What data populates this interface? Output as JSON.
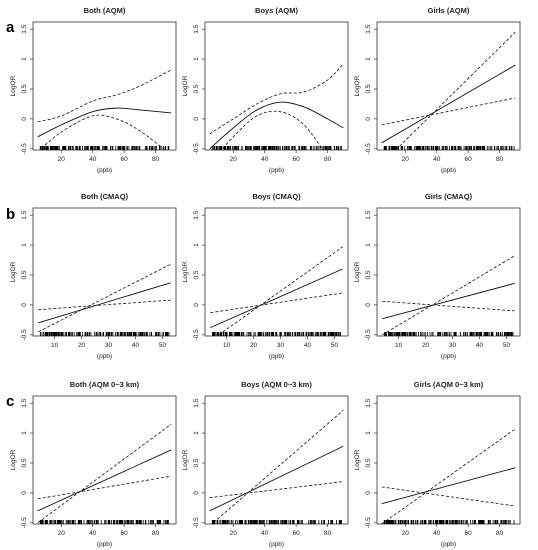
{
  "chart_data": [
    {
      "type": "line",
      "panel_letter": "a",
      "title": "Both (AQM)",
      "xlabel": "(ppb)",
      "ylabel": "LogOR",
      "xlim": [
        2,
        93
      ],
      "ylim": [
        -0.52,
        1.62
      ],
      "xticks": [
        20,
        40,
        60,
        80
      ],
      "yticks": [
        -0.5,
        0,
        0.5,
        1.0,
        1.5
      ],
      "series": [
        {
          "style": "solid",
          "x": [
            5,
            20,
            40,
            55,
            70,
            90
          ],
          "y": [
            -0.3,
            -0.1,
            0.12,
            0.18,
            0.15,
            0.1
          ]
        },
        {
          "style": "dashed",
          "x": [
            5,
            20,
            40,
            55,
            70,
            90
          ],
          "y": [
            -0.05,
            0.05,
            0.3,
            0.4,
            0.55,
            0.82
          ]
        },
        {
          "style": "dashed",
          "x": [
            5,
            20,
            40,
            55,
            70,
            90
          ],
          "y": [
            -0.55,
            -0.22,
            0.05,
            0.0,
            -0.2,
            -0.6
          ]
        }
      ]
    },
    {
      "type": "line",
      "title": "Boys (AQM)",
      "xlabel": "(ppb)",
      "ylabel": "LogOR",
      "xlim": [
        2,
        93
      ],
      "ylim": [
        -0.52,
        1.62
      ],
      "xticks": [
        20,
        40,
        60,
        80
      ],
      "yticks": [
        -0.5,
        0,
        0.5,
        1.0,
        1.5
      ],
      "series": [
        {
          "style": "solid",
          "x": [
            5,
            20,
            35,
            50,
            65,
            80,
            90
          ],
          "y": [
            -0.5,
            -0.15,
            0.15,
            0.28,
            0.2,
            0.0,
            -0.15
          ]
        },
        {
          "style": "dashed",
          "x": [
            5,
            20,
            35,
            50,
            65,
            80,
            90
          ],
          "y": [
            -0.25,
            0.0,
            0.25,
            0.42,
            0.45,
            0.65,
            0.92
          ]
        },
        {
          "style": "dashed",
          "x": [
            5,
            20,
            35,
            50,
            65,
            80,
            90
          ],
          "y": [
            -0.75,
            -0.3,
            0.05,
            0.12,
            -0.1,
            -0.65,
            -1.2
          ]
        }
      ]
    },
    {
      "type": "line",
      "title": "Girls (AQM)",
      "xlabel": "(ppb)",
      "ylabel": "LogOR",
      "xlim": [
        2,
        93
      ],
      "ylim": [
        -0.52,
        1.62
      ],
      "xticks": [
        20,
        40,
        60,
        80
      ],
      "yticks": [
        -0.5,
        0,
        0.5,
        1.0,
        1.5
      ],
      "series": [
        {
          "style": "solid",
          "x": [
            5,
            90
          ],
          "y": [
            -0.4,
            0.9
          ]
        },
        {
          "style": "dashed",
          "x": [
            5,
            90
          ],
          "y": [
            -0.75,
            1.45
          ]
        },
        {
          "style": "dashed",
          "x": [
            5,
            90
          ],
          "y": [
            -0.1,
            0.35
          ]
        }
      ]
    },
    {
      "type": "line",
      "panel_letter": "b",
      "title": "Both (CMAQ)",
      "xlabel": "(ppb)",
      "ylabel": "LogOR",
      "xlim": [
        2,
        55
      ],
      "ylim": [
        -0.52,
        1.62
      ],
      "xticks": [
        10,
        20,
        30,
        40,
        50
      ],
      "yticks": [
        -0.5,
        0,
        0.5,
        1.0,
        1.5
      ],
      "series": [
        {
          "style": "solid",
          "x": [
            4,
            53
          ],
          "y": [
            -0.3,
            0.37
          ]
        },
        {
          "style": "dashed",
          "x": [
            4,
            53
          ],
          "y": [
            -0.45,
            0.68
          ]
        },
        {
          "style": "dashed",
          "x": [
            4,
            53
          ],
          "y": [
            -0.08,
            0.08
          ]
        }
      ]
    },
    {
      "type": "line",
      "title": "Boys (CMAQ)",
      "xlabel": "(ppb)",
      "ylabel": "LogOR",
      "xlim": [
        2,
        55
      ],
      "ylim": [
        -0.52,
        1.62
      ],
      "xticks": [
        10,
        20,
        30,
        40,
        50
      ],
      "yticks": [
        -0.5,
        0,
        0.5,
        1.0,
        1.5
      ],
      "series": [
        {
          "style": "solid",
          "x": [
            4,
            53
          ],
          "y": [
            -0.38,
            0.6
          ]
        },
        {
          "style": "dashed",
          "x": [
            4,
            53
          ],
          "y": [
            -0.6,
            0.97
          ]
        },
        {
          "style": "dashed",
          "x": [
            4,
            53
          ],
          "y": [
            -0.13,
            0.2
          ]
        }
      ]
    },
    {
      "type": "line",
      "title": "Girls (CMAQ)",
      "xlabel": "(ppb)",
      "ylabel": "LogOR",
      "xlim": [
        2,
        55
      ],
      "ylim": [
        -0.52,
        1.62
      ],
      "xticks": [
        10,
        20,
        30,
        40,
        50
      ],
      "yticks": [
        -0.5,
        0,
        0.5,
        1.0,
        1.5
      ],
      "series": [
        {
          "style": "solid",
          "x": [
            4,
            53
          ],
          "y": [
            -0.23,
            0.36
          ]
        },
        {
          "style": "dashed",
          "x": [
            4,
            53
          ],
          "y": [
            -0.5,
            0.82
          ]
        },
        {
          "style": "dashed",
          "x": [
            4,
            53
          ],
          "y": [
            0.06,
            -0.1
          ]
        }
      ]
    },
    {
      "type": "line",
      "panel_letter": "c",
      "title": "Both (AQM 0~3 km)",
      "xlabel": "(ppb)",
      "ylabel": "LogOR",
      "xlim": [
        2,
        93
      ],
      "ylim": [
        -0.52,
        1.62
      ],
      "xticks": [
        20,
        40,
        60,
        80
      ],
      "yticks": [
        -0.5,
        0,
        0.5,
        1.0,
        1.5
      ],
      "series": [
        {
          "style": "solid",
          "x": [
            5,
            90
          ],
          "y": [
            -0.3,
            0.72
          ]
        },
        {
          "style": "dashed",
          "x": [
            5,
            90
          ],
          "y": [
            -0.5,
            1.15
          ]
        },
        {
          "style": "dashed",
          "x": [
            5,
            90
          ],
          "y": [
            -0.1,
            0.28
          ]
        }
      ]
    },
    {
      "type": "line",
      "title": "Boys (AQM 0~3 km)",
      "xlabel": "(ppb)",
      "ylabel": "LogOR",
      "xlim": [
        2,
        93
      ],
      "ylim": [
        -0.52,
        1.62
      ],
      "xticks": [
        20,
        40,
        60,
        80
      ],
      "yticks": [
        -0.5,
        0,
        0.5,
        1.0,
        1.5
      ],
      "series": [
        {
          "style": "solid",
          "x": [
            5,
            90
          ],
          "y": [
            -0.3,
            0.78
          ]
        },
        {
          "style": "dashed",
          "x": [
            5,
            90
          ],
          "y": [
            -0.55,
            1.38
          ]
        },
        {
          "style": "dashed",
          "x": [
            5,
            90
          ],
          "y": [
            -0.08,
            0.19
          ]
        }
      ]
    },
    {
      "type": "line",
      "title": "Girls (AQM 0~3 km)",
      "xlabel": "(ppb)",
      "ylabel": "LogOR",
      "xlim": [
        2,
        93
      ],
      "ylim": [
        -0.52,
        1.62
      ],
      "xticks": [
        20,
        40,
        60,
        80
      ],
      "yticks": [
        -0.5,
        0,
        0.5,
        1.0,
        1.5
      ],
      "series": [
        {
          "style": "solid",
          "x": [
            5,
            90
          ],
          "y": [
            -0.18,
            0.42
          ]
        },
        {
          "style": "dashed",
          "x": [
            5,
            90
          ],
          "y": [
            -0.52,
            1.07
          ]
        },
        {
          "style": "dashed",
          "x": [
            5,
            90
          ],
          "y": [
            0.1,
            -0.22
          ]
        }
      ]
    }
  ]
}
